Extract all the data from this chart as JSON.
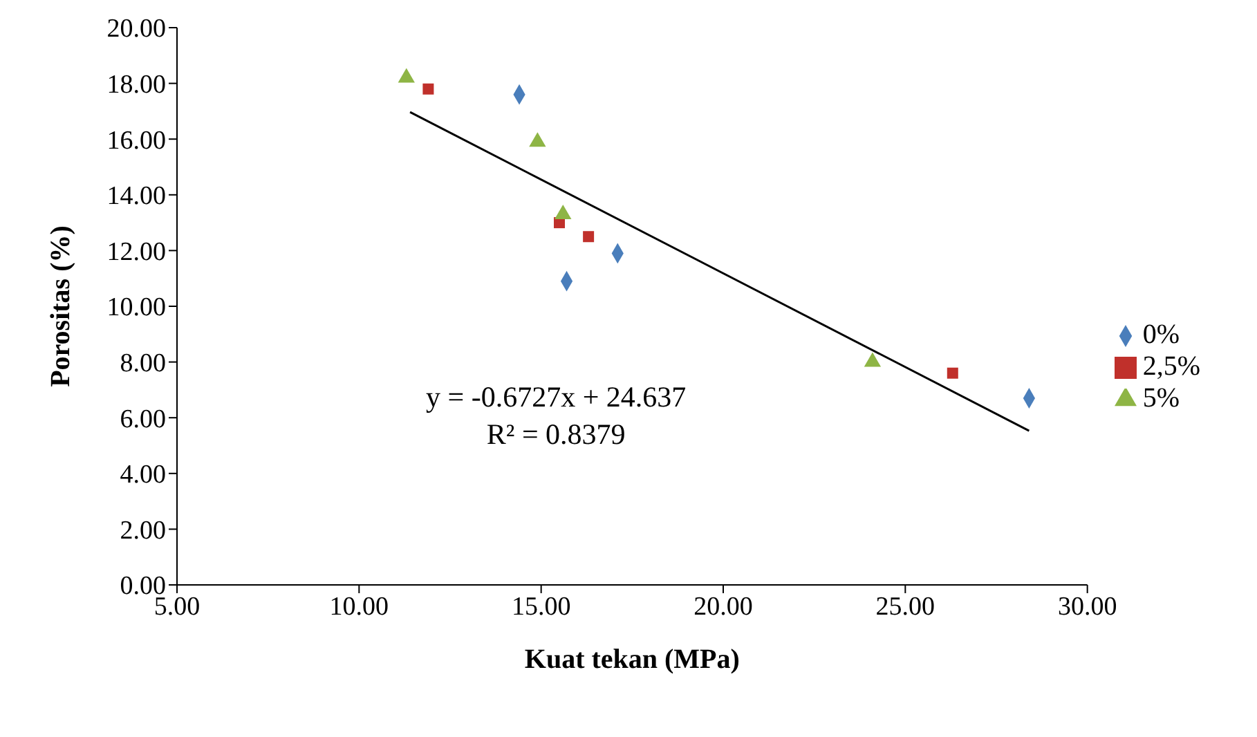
{
  "chart_data": {
    "type": "scatter",
    "xlabel": "Kuat tekan (MPa)",
    "ylabel": "Porositas (%)",
    "xlim": [
      5,
      30
    ],
    "xticks": [
      {
        "value": 5,
        "label": "5.00"
      },
      {
        "value": 10,
        "label": "10.00"
      },
      {
        "value": 15,
        "label": "15.00"
      },
      {
        "value": 20,
        "label": "20.00"
      },
      {
        "value": 25,
        "label": "25.00"
      },
      {
        "value": 30,
        "label": "30.00"
      }
    ],
    "ylim": [
      0,
      20
    ],
    "yticks": [
      {
        "value": 0,
        "label": "0.00"
      },
      {
        "value": 2,
        "label": "2.00"
      },
      {
        "value": 4,
        "label": "4.00"
      },
      {
        "value": 6,
        "label": "6.00"
      },
      {
        "value": 8,
        "label": "8.00"
      },
      {
        "value": 10,
        "label": "10.00"
      },
      {
        "value": 12,
        "label": "12.00"
      },
      {
        "value": 14,
        "label": "14.00"
      },
      {
        "value": 16,
        "label": "16.00"
      },
      {
        "value": 18,
        "label": "18.00"
      },
      {
        "value": 20,
        "label": "20.00"
      }
    ],
    "grid": false,
    "legend": "right",
    "series": [
      {
        "name": "0%",
        "color": "#4a7ebb",
        "marker": "diamond",
        "x": [
          14.4,
          15.7,
          17.1,
          28.4
        ],
        "values": [
          17.6,
          10.9,
          11.9,
          6.7
        ]
      },
      {
        "name": "2,5%",
        "color": "#c0302b",
        "marker": "square",
        "x": [
          11.9,
          15.5,
          16.3,
          26.3
        ],
        "values": [
          17.8,
          13.0,
          12.5,
          7.6
        ]
      },
      {
        "name": "5%",
        "color": "#8eb545",
        "marker": "triangle",
        "x": [
          11.3,
          14.9,
          15.6,
          24.1
        ],
        "values": [
          18.2,
          15.9,
          13.3,
          8.0
        ]
      },
      {
        "type": "line",
        "color": "#000000",
        "marker": "none",
        "x": [
          11.4,
          28.4
        ],
        "values": [
          16.97,
          5.53
        ]
      }
    ],
    "annotations": [
      "y = -0.6727x + 24.637",
      "R² = 0.8379"
    ]
  }
}
